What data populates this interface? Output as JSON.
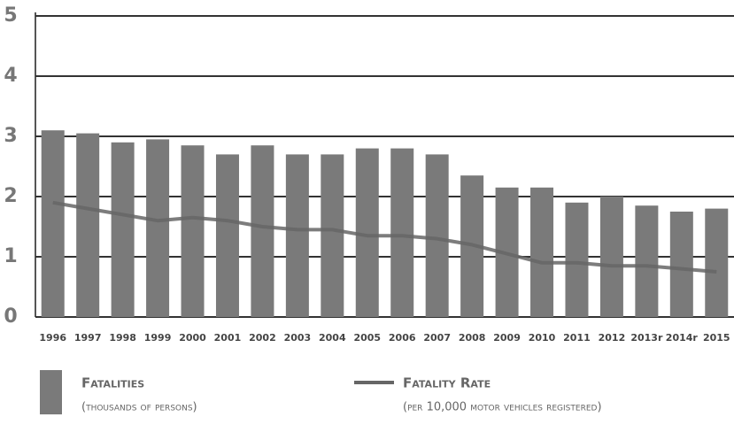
{
  "chart_data": {
    "type": "bar",
    "categories": [
      "1996",
      "1997",
      "1998",
      "1999",
      "2000",
      "2001",
      "2002",
      "2003",
      "2004",
      "2005",
      "2006",
      "2007",
      "2008",
      "2009",
      "2010",
      "2011",
      "2012",
      "2013r",
      "2014r",
      "2015"
    ],
    "series": [
      {
        "name": "Fatalities",
        "sublabel": "(thousands of persons)",
        "type": "bar",
        "color": "#7a7a7a",
        "values": [
          3.1,
          3.05,
          2.9,
          2.95,
          2.85,
          2.7,
          2.85,
          2.7,
          2.7,
          2.8,
          2.8,
          2.7,
          2.35,
          2.15,
          2.15,
          1.9,
          2.0,
          1.85,
          1.75,
          1.8
        ]
      },
      {
        "name": "Fatality Rate",
        "sublabel": "(per 10,000 motor vehicles registered)",
        "type": "line",
        "color": "#666666",
        "values": [
          1.9,
          1.8,
          1.7,
          1.6,
          1.65,
          1.6,
          1.5,
          1.45,
          1.45,
          1.35,
          1.35,
          1.3,
          1.2,
          1.05,
          0.9,
          0.9,
          0.85,
          0.85,
          0.8,
          0.75
        ]
      }
    ],
    "ylim": [
      0,
      5
    ],
    "yticks": [
      0,
      1,
      2,
      3,
      4,
      5
    ],
    "grid": true
  }
}
